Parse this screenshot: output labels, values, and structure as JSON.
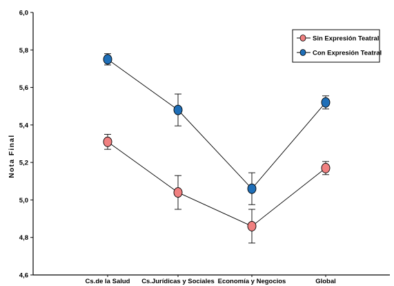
{
  "chart_data": {
    "type": "line",
    "title": "",
    "xlabel": "",
    "ylabel": "Nota Final",
    "ylim": [
      4.6,
      6.0
    ],
    "yticks": [
      "4,6",
      "4,8",
      "5,0",
      "5,2",
      "5,4",
      "5,6",
      "5,8",
      "6,0"
    ],
    "categories": [
      "Cs.de la Salud",
      "Cs.Jurídicas y Sociales",
      "Economía y Negocios",
      "Global"
    ],
    "grid": false,
    "legend_position": "top-right",
    "series": [
      {
        "name": "Sin Expresión Teatral",
        "color": "#f08080",
        "values": [
          5.31,
          5.04,
          4.86,
          5.17
        ],
        "error": [
          0.04,
          0.09,
          0.09,
          0.035
        ]
      },
      {
        "name": "Con Expresión Teatral",
        "color": "#1f6fb8",
        "values": [
          5.75,
          5.48,
          5.06,
          5.52
        ],
        "error": [
          0.03,
          0.085,
          0.085,
          0.035
        ]
      }
    ]
  }
}
